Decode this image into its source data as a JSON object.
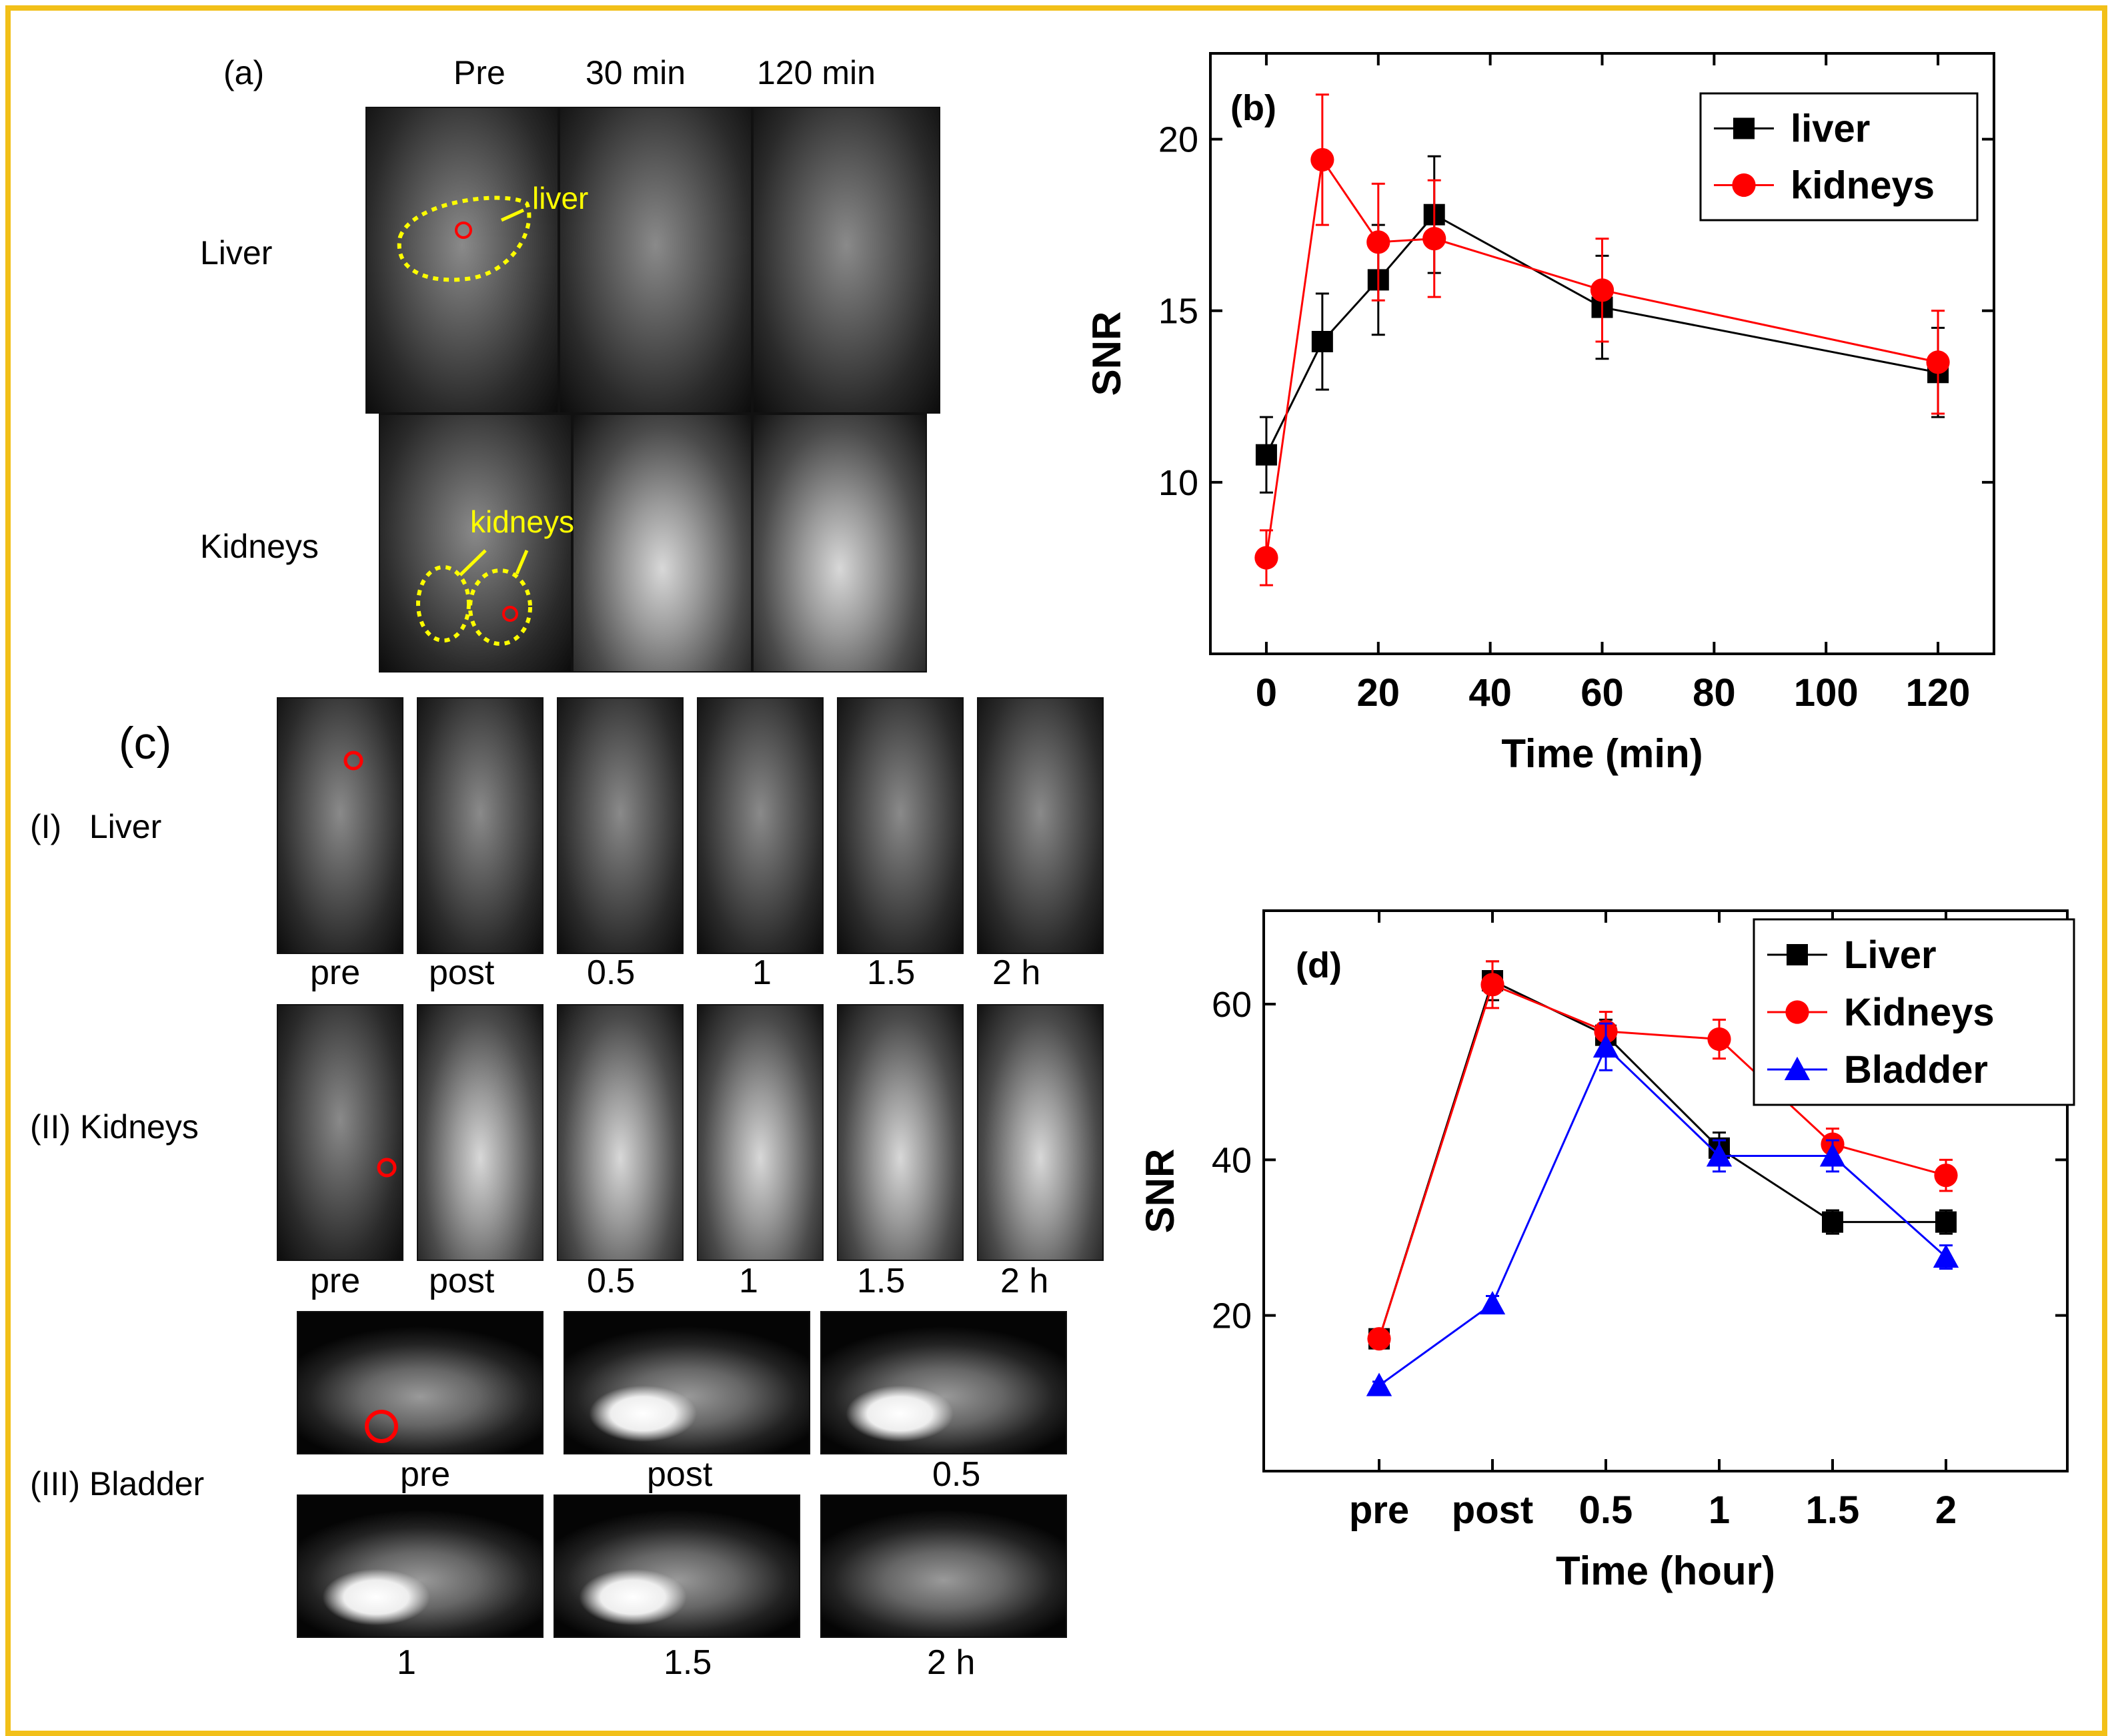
{
  "panel_a": {
    "label": "(a)",
    "col_headers": [
      "Pre",
      "30 min",
      "120 min"
    ],
    "row_labels": [
      "Liver",
      "Kidneys"
    ],
    "annotations": {
      "liver": "liver",
      "kidneys": "kidneys"
    }
  },
  "panel_c": {
    "label": "(c)",
    "rows": [
      {
        "label": "(I)   Liver",
        "times": [
          "pre",
          "post",
          "0.5",
          "1",
          "1.5",
          "2 h"
        ]
      },
      {
        "label": "(II) Kidneys",
        "times": [
          "pre",
          "post",
          "0.5",
          "1",
          "1.5",
          "2 h"
        ]
      },
      {
        "label": "(III) Bladder",
        "times": [
          "pre",
          "post",
          "0.5",
          "1",
          "1.5",
          "2 h"
        ]
      }
    ]
  },
  "colors": {
    "liver": "#000000",
    "kidneys": "#ff0000",
    "bladder": "#0000ff",
    "frame": "#f2c019",
    "roi": "#ff0000",
    "outline": "#ffff00"
  },
  "chart_data": [
    {
      "id": "b",
      "type": "line",
      "panel_label": "(b)",
      "title": "",
      "xlabel": "Time (min)",
      "ylabel": "SNR",
      "xlim": [
        -10,
        130
      ],
      "ylim": [
        5,
        22.5
      ],
      "xticks": [
        0,
        20,
        40,
        60,
        80,
        100,
        120
      ],
      "yticks": [
        10,
        15,
        20
      ],
      "legend_position": "top-right",
      "series": [
        {
          "name": "liver",
          "marker": "square",
          "color": "#000000",
          "x": [
            0,
            10,
            20,
            30,
            60,
            120
          ],
          "y": [
            10.8,
            14.1,
            15.9,
            17.8,
            15.1,
            13.2
          ],
          "err": [
            1.1,
            1.4,
            1.6,
            1.7,
            1.5,
            1.3
          ]
        },
        {
          "name": "kidneys",
          "marker": "circle",
          "color": "#ff0000",
          "x": [
            0,
            10,
            20,
            30,
            60,
            120
          ],
          "y": [
            7.8,
            19.4,
            17.0,
            17.1,
            15.6,
            13.5
          ],
          "err": [
            0.8,
            1.9,
            1.7,
            1.7,
            1.5,
            1.5
          ]
        }
      ]
    },
    {
      "id": "d",
      "type": "line",
      "panel_label": "(d)",
      "title": "",
      "xlabel": "Time (hour)",
      "ylabel": "SNR",
      "categories": [
        "pre",
        "post",
        "0.5",
        "1",
        "1.5",
        "2"
      ],
      "ylim": [
        0,
        72
      ],
      "yticks": [
        20,
        40,
        60
      ],
      "legend_position": "top-right",
      "series": [
        {
          "name": "Liver",
          "marker": "square",
          "color": "#000000",
          "values": [
            17,
            63,
            56,
            41.5,
            32,
            32
          ],
          "err": [
            0.5,
            2.5,
            2.0,
            2.0,
            1.5,
            1.5
          ]
        },
        {
          "name": "Kidneys",
          "marker": "circle",
          "color": "#ff0000",
          "values": [
            17,
            62.5,
            56.5,
            55.5,
            42,
            38
          ],
          "err": [
            0.5,
            3.0,
            2.5,
            2.5,
            2.0,
            2.0
          ]
        },
        {
          "name": "Bladder",
          "marker": "triangle",
          "color": "#0000ff",
          "values": [
            11,
            21.5,
            54.5,
            40.5,
            40.5,
            27.5
          ],
          "err": [
            0.5,
            1.0,
            3.0,
            2.0,
            2.0,
            1.5
          ]
        }
      ]
    }
  ]
}
